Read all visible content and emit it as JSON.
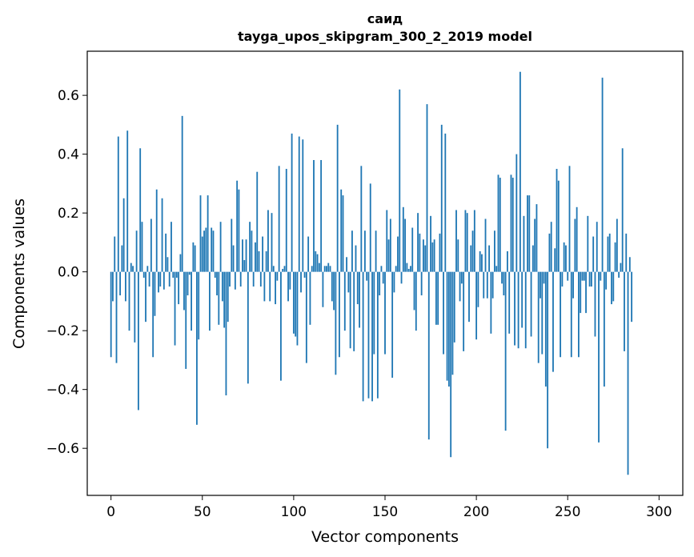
{
  "chart_data": {
    "type": "bar",
    "title": "саид",
    "subtitle": "tayga_upos_skipgram_300_2_2019 model",
    "xlabel": "Vector components",
    "ylabel": "Components values",
    "xlim": [
      -13,
      313
    ],
    "ylim": [
      -0.76,
      0.75
    ],
    "x_ticks": [
      0,
      50,
      100,
      150,
      200,
      250,
      300
    ],
    "x_tick_labels": [
      "0",
      "50",
      "100",
      "150",
      "200",
      "250",
      "300"
    ],
    "y_ticks": [
      -0.6,
      -0.4,
      -0.2,
      0.0,
      0.2,
      0.4,
      0.6
    ],
    "y_tick_labels": [
      "−0.6",
      "−0.4",
      "−0.2",
      "0.0",
      "0.2",
      "0.4",
      "0.6"
    ],
    "bar_color": "#1f77b4",
    "grid": false,
    "values": [
      -0.29,
      -0.1,
      0.12,
      -0.31,
      0.46,
      -0.08,
      0.09,
      0.25,
      -0.1,
      0.48,
      -0.2,
      0.03,
      0.02,
      -0.24,
      0.14,
      -0.47,
      0.42,
      0.17,
      -0.02,
      -0.17,
      0.02,
      -0.05,
      0.18,
      -0.29,
      -0.15,
      0.28,
      -0.07,
      -0.05,
      0.25,
      -0.06,
      0.13,
      0.05,
      -0.05,
      0.17,
      -0.02,
      -0.25,
      -0.02,
      -0.11,
      0.06,
      0.53,
      -0.13,
      -0.33,
      -0.08,
      -0.01,
      -0.2,
      0.1,
      0.09,
      -0.52,
      -0.23,
      0.26,
      0.12,
      0.14,
      0.15,
      0.26,
      -0.2,
      0.15,
      0.14,
      -0.02,
      -0.08,
      -0.18,
      0.17,
      -0.1,
      -0.19,
      -0.42,
      -0.17,
      -0.05,
      0.18,
      0.09,
      -0.06,
      0.31,
      0.28,
      -0.05,
      0.11,
      0.04,
      0.11,
      -0.38,
      0.17,
      0.14,
      -0.05,
      0.1,
      0.34,
      0.07,
      -0.05,
      0.12,
      -0.1,
      0.07,
      0.21,
      -0.1,
      0.2,
      0.02,
      -0.11,
      -0.03,
      0.36,
      -0.37,
      0.01,
      0.02,
      0.35,
      -0.1,
      -0.06,
      0.47,
      -0.21,
      -0.22,
      -0.25,
      0.46,
      -0.07,
      0.45,
      -0.02,
      -0.31,
      0.12,
      -0.18,
      0.02,
      0.38,
      0.07,
      0.06,
      0.03,
      0.38,
      -0.12,
      0.02,
      0.02,
      0.03,
      0.02,
      -0.1,
      -0.13,
      -0.35,
      0.5,
      -0.29,
      0.28,
      0.26,
      -0.2,
      0.05,
      -0.07,
      -0.26,
      0.14,
      -0.27,
      0.09,
      -0.11,
      -0.19,
      0.36,
      -0.44,
      0.14,
      -0.03,
      -0.43,
      0.3,
      -0.44,
      -0.28,
      0.14,
      -0.43,
      -0.08,
      0.02,
      -0.04,
      -0.28,
      0.21,
      0.11,
      0.18,
      -0.36,
      -0.07,
      0.02,
      0.12,
      0.62,
      -0.04,
      0.22,
      0.18,
      0.03,
      0.01,
      0.02,
      0.15,
      -0.13,
      -0.2,
      0.2,
      0.13,
      -0.08,
      0.11,
      0.09,
      0.57,
      -0.57,
      0.19,
      0.1,
      0.11,
      -0.18,
      -0.18,
      0.13,
      0.5,
      -0.28,
      0.47,
      -0.37,
      -0.39,
      -0.63,
      -0.35,
      -0.24,
      0.21,
      0.11,
      -0.1,
      -0.04,
      -0.27,
      0.21,
      0.2,
      -0.17,
      0.09,
      0.14,
      0.21,
      -0.23,
      -0.12,
      0.07,
      0.06,
      -0.09,
      0.18,
      -0.09,
      0.09,
      -0.21,
      -0.09,
      0.14,
      0.02,
      0.33,
      0.32,
      -0.04,
      -0.08,
      -0.54,
      0.07,
      -0.21,
      0.33,
      0.32,
      -0.25,
      0.4,
      -0.26,
      0.68,
      -0.19,
      0.19,
      -0.26,
      0.26,
      0.26,
      -0.22,
      0.09,
      0.18,
      0.23,
      -0.31,
      -0.09,
      -0.28,
      -0.04,
      -0.39,
      -0.6,
      0.13,
      0.17,
      -0.34,
      0.08,
      0.35,
      0.31,
      -0.29,
      -0.05,
      0.1,
      0.09,
      -0.03,
      0.36,
      -0.29,
      -0.09,
      0.18,
      0.22,
      -0.29,
      -0.14,
      -0.03,
      -0.03,
      -0.14,
      0.19,
      -0.05,
      -0.05,
      0.12,
      -0.22,
      0.17,
      -0.58,
      -0.03,
      0.66,
      -0.39,
      -0.06,
      0.12,
      0.13,
      -0.11,
      -0.1,
      0.1,
      0.18,
      -0.02,
      0.03,
      0.42,
      -0.27,
      0.13,
      -0.69,
      0.05,
      -0.17
    ]
  }
}
